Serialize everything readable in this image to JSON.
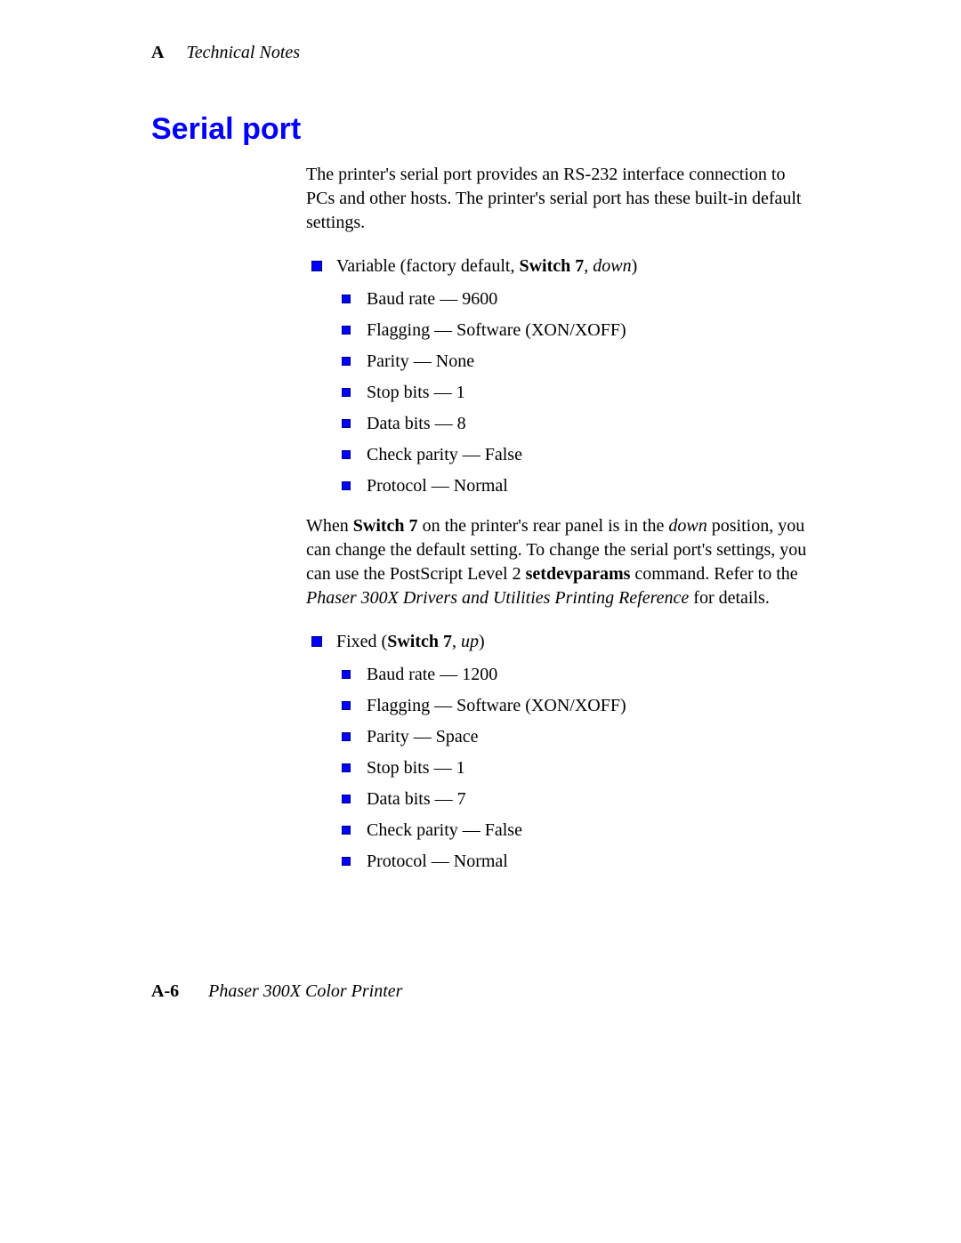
{
  "header": {
    "appendix_letter": "A",
    "title": "Technical Notes"
  },
  "section_title": "Serial port",
  "intro": "The printer's serial port provides an RS-232 interface connection to PCs and other hosts.  The printer's serial port has these built-in default settings.",
  "group1": {
    "lead_pre": "Variable (factory default, ",
    "lead_bold": "Switch 7",
    "lead_sep": ", ",
    "lead_italic": "down",
    "lead_post": ")",
    "items": [
      "Baud rate — 9600",
      "Flagging — Software (XON/XOFF)",
      "Parity — None",
      "Stop bits — 1",
      "Data bits — 8",
      "Check parity — False",
      "Protocol — Normal"
    ]
  },
  "mid_para": {
    "p1": "When ",
    "b1": "Switch 7",
    "p2": " on the printer's rear panel is in the ",
    "i1": "down",
    "p3": " position, you can change the default setting.  To change the serial port's settings, you can use the PostScript Level 2 ",
    "b2": "setdevparams",
    "p4": " command.  Refer to the ",
    "i2": "Phaser 300X Drivers and Utilities Printing Reference",
    "p5": " for details."
  },
  "group2": {
    "lead_pre": "Fixed (",
    "lead_bold": "Switch 7",
    "lead_sep": ", ",
    "lead_italic": "up",
    "lead_post": ")",
    "items": [
      "Baud rate — 1200",
      "Flagging — Software (XON/XOFF)",
      "Parity — Space",
      "Stop bits — 1",
      "Data bits — 7",
      "Check parity — False",
      "Protocol — Normal"
    ]
  },
  "footer": {
    "page_number": "A-6",
    "title": "Phaser 300X Color Printer"
  },
  "colors": {
    "heading": "#0000ff",
    "bullet_fill": "#0000ff",
    "bullet_border": "#000080",
    "text": "#000000",
    "background": "#ffffff"
  },
  "typography": {
    "body_family": "Palatino/Book Antiqua serif",
    "body_size_pt": 15,
    "heading_family": "Arial/Helvetica sans-serif",
    "heading_size_pt": 26
  }
}
